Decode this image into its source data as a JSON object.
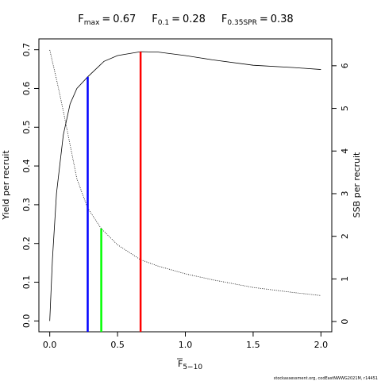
{
  "chart_data": {
    "type": "line",
    "title_parts": [
      {
        "symbol": "F",
        "sub": "max",
        "rel": "=",
        "value": 0.67
      },
      {
        "symbol": "F",
        "sub": "0.1",
        "rel": "=",
        "value": 0.28
      },
      {
        "symbol": "F",
        "sub": "0.35SPR",
        "rel": "=",
        "value": 0.38
      }
    ],
    "x_label": {
      "symbol": "F",
      "sub": "5−10"
    },
    "y_label": "Yield per recruit",
    "y2_label": "SSB per recruit",
    "footnote": "stockassessment.org, codEastNWWG2021M, r14451",
    "xlim": [
      -0.08,
      2.08
    ],
    "ylim": [
      -0.028,
      0.728
    ],
    "y2lim": [
      -0.24,
      6.63
    ],
    "xticks": [
      {
        "value": 0,
        "label": "0.0"
      },
      0.5,
      {
        "value": 1,
        "label": "1.0"
      },
      1.5,
      {
        "value": 2,
        "label": "2.0"
      }
    ],
    "yticks": [
      {
        "value": 0,
        "label": "0.0"
      },
      0.1,
      0.2,
      0.3,
      0.4,
      0.5,
      0.6,
      0.7
    ],
    "y2ticks": [
      0,
      1,
      2,
      3,
      4,
      5,
      6
    ],
    "series": [
      {
        "color": "#000000",
        "dash": "solid",
        "axis": "y",
        "x": [
          0,
          0.02,
          0.05,
          0.1,
          0.15,
          0.2,
          0.28,
          0.4,
          0.5,
          0.67,
          0.8,
          1.0,
          1.2,
          1.5,
          1.8,
          2.0
        ],
        "values": [
          0,
          0.16,
          0.33,
          0.48,
          0.56,
          0.6,
          0.63,
          0.67,
          0.685,
          0.695,
          0.694,
          0.685,
          0.674,
          0.66,
          0.654,
          0.649
        ]
      },
      {
        "color": "#000000",
        "dash": "dotted",
        "axis": "y2",
        "x": [
          0,
          0.05,
          0.1,
          0.2,
          0.28,
          0.38,
          0.5,
          0.67,
          0.8,
          1.0,
          1.2,
          1.5,
          1.8,
          2.0
        ],
        "values": [
          6.37,
          5.68,
          4.94,
          3.35,
          2.66,
          2.18,
          1.8,
          1.45,
          1.3,
          1.12,
          0.98,
          0.8,
          0.68,
          0.61
        ]
      }
    ],
    "reference_lines": [
      {
        "color": "#0000ff",
        "x": 0.28,
        "top": 0.63,
        "axis": "y"
      },
      {
        "color": "#00ff00",
        "x": 0.38,
        "top": 2.18,
        "axis": "y2"
      },
      {
        "color": "#ff0000",
        "x": 0.67,
        "top": 0.695,
        "axis": "y"
      }
    ]
  }
}
